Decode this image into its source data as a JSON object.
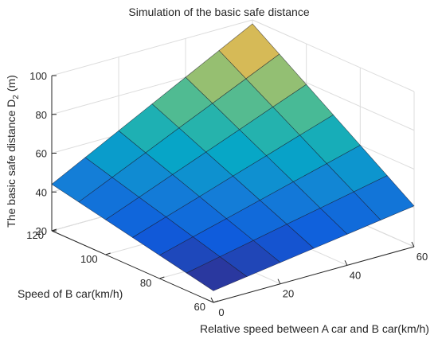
{
  "chart_data": {
    "type": "surface",
    "title": "Simulation of the basic safe distance",
    "xlabel": "Relative speed between A car and B car(km/h)",
    "ylabel": "Speed of B car(km/h)",
    "zlabel": {
      "text": "The basic safe distance D",
      "sub": "2",
      "unit": "(m)"
    },
    "x": [
      0,
      10,
      20,
      30,
      40,
      50,
      60
    ],
    "y": [
      60,
      70,
      80,
      90,
      100,
      110,
      120
    ],
    "z": [
      [
        26,
        28.5,
        31,
        33.5,
        36,
        38.5,
        41
      ],
      [
        29,
        32.6,
        36.2,
        39.8,
        43.3,
        46.9,
        50.5
      ],
      [
        32,
        36.7,
        41.3,
        46,
        50.7,
        55.3,
        60
      ],
      [
        35,
        40.8,
        46.5,
        52.3,
        58,
        63.8,
        69.5
      ],
      [
        38,
        44.8,
        51.7,
        58.5,
        65.3,
        72.2,
        79
      ],
      [
        41,
        48.9,
        56.8,
        64.8,
        72.7,
        80.6,
        88.5
      ],
      [
        44,
        53,
        62,
        71,
        80,
        89,
        98
      ]
    ],
    "xlim": [
      0,
      60
    ],
    "ylim": [
      60,
      120
    ],
    "zlim": [
      20,
      100
    ],
    "xticks": [
      0,
      20,
      40,
      60
    ],
    "yticks": [
      60,
      80,
      100,
      120
    ],
    "zticks": [
      20,
      40,
      60,
      80,
      100
    ],
    "colormap": "parula",
    "grid": true
  }
}
